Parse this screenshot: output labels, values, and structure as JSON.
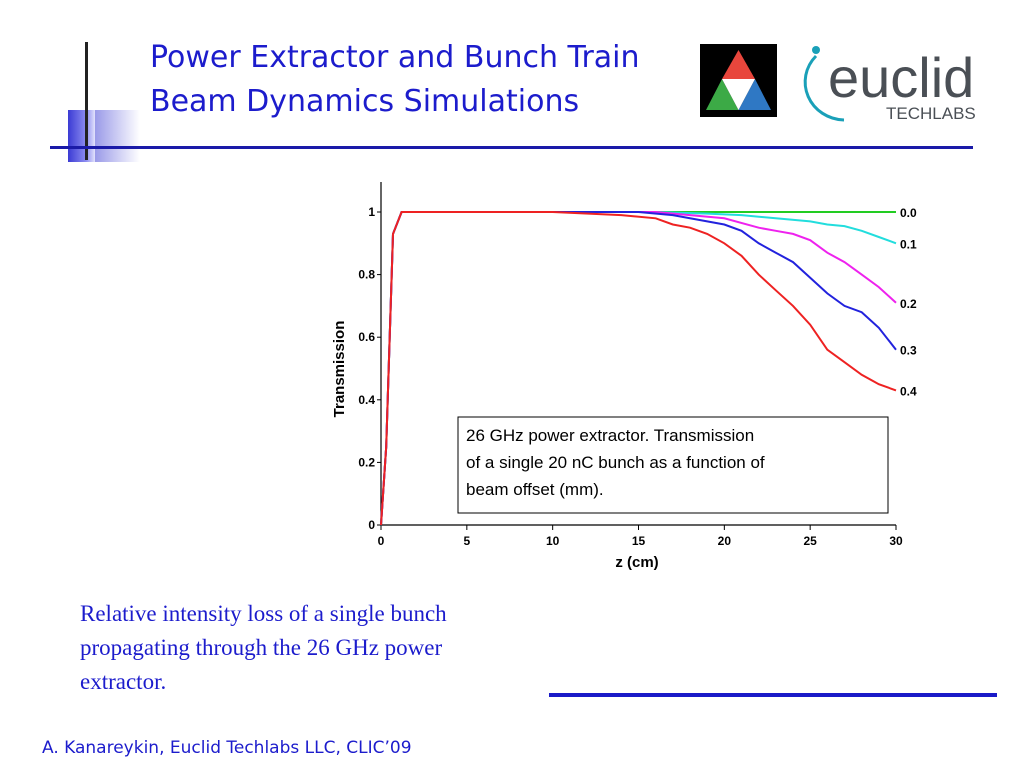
{
  "slide": {
    "title_lines": [
      "Power Extractor and Bunch Train",
      "Beam Dynamics Simulations"
    ],
    "caption_lines": [
      "Relative intensity loss of a single bunch",
      "propagating through the 26 GHz power",
      "extractor."
    ],
    "footer": "A. Kanareykin, Euclid Techlabs LLC, CLIC’09",
    "logo_word": "euclid",
    "logo_subword": "TECHLABS"
  },
  "colors": {
    "title": "#1c1ccc",
    "rule": "#1a1aa8",
    "logo_grey": "#4a4f55",
    "logo_teal": "#1aa0b8"
  },
  "chart_data": {
    "type": "line",
    "xlabel": "z (cm)",
    "ylabel": "Transmission",
    "xlim": [
      0,
      30
    ],
    "ylim": [
      0,
      1
    ],
    "xticks": [
      0,
      5,
      10,
      15,
      20,
      25,
      30
    ],
    "yticks": [
      0,
      0.2,
      0.4,
      0.6,
      0.8,
      1
    ],
    "annotation_lines": [
      "26 GHz power extractor. Transmission",
      "of a single 20 nC bunch as a function of",
      "beam offset (mm)."
    ],
    "series": [
      {
        "name": "0.0",
        "color": "#22cc22",
        "x": [
          0,
          0.3,
          0.7,
          1.2,
          10,
          20,
          25,
          30
        ],
        "y": [
          0,
          0.25,
          0.93,
          1.0,
          1.0,
          1.0,
          1.0,
          1.0
        ]
      },
      {
        "name": "0.1",
        "color": "#22dddd",
        "x": [
          0,
          0.3,
          0.7,
          1.2,
          10,
          16,
          19,
          21,
          23,
          25,
          26,
          27,
          28,
          29,
          30
        ],
        "y": [
          0,
          0.25,
          0.93,
          1.0,
          1.0,
          1.0,
          0.995,
          0.99,
          0.98,
          0.97,
          0.96,
          0.955,
          0.94,
          0.92,
          0.9
        ]
      },
      {
        "name": "0.2",
        "color": "#ee22ee",
        "x": [
          0,
          0.3,
          0.7,
          1.2,
          10,
          16,
          18,
          20,
          22,
          23,
          24,
          25,
          26,
          27,
          28,
          29,
          30
        ],
        "y": [
          0,
          0.25,
          0.93,
          1.0,
          1.0,
          1.0,
          0.99,
          0.98,
          0.95,
          0.94,
          0.93,
          0.91,
          0.87,
          0.84,
          0.8,
          0.76,
          0.71
        ]
      },
      {
        "name": "0.3",
        "color": "#2222dd",
        "x": [
          0,
          0.3,
          0.7,
          1.2,
          10,
          15,
          17,
          19,
          20,
          21,
          22,
          23,
          24,
          25,
          26,
          27,
          28,
          29,
          30
        ],
        "y": [
          0,
          0.25,
          0.93,
          1.0,
          1.0,
          1.0,
          0.99,
          0.97,
          0.96,
          0.94,
          0.9,
          0.87,
          0.84,
          0.79,
          0.74,
          0.7,
          0.68,
          0.63,
          0.56
        ]
      },
      {
        "name": "0.4",
        "color": "#ee2222",
        "x": [
          0,
          0.3,
          0.7,
          1.2,
          10,
          14,
          16,
          17,
          18,
          19,
          20,
          21,
          22,
          23,
          24,
          25,
          26,
          27,
          28,
          29,
          30
        ],
        "y": [
          0,
          0.25,
          0.93,
          1.0,
          1.0,
          0.99,
          0.98,
          0.96,
          0.95,
          0.93,
          0.9,
          0.86,
          0.8,
          0.75,
          0.7,
          0.64,
          0.56,
          0.52,
          0.48,
          0.45,
          0.43
        ]
      }
    ]
  }
}
